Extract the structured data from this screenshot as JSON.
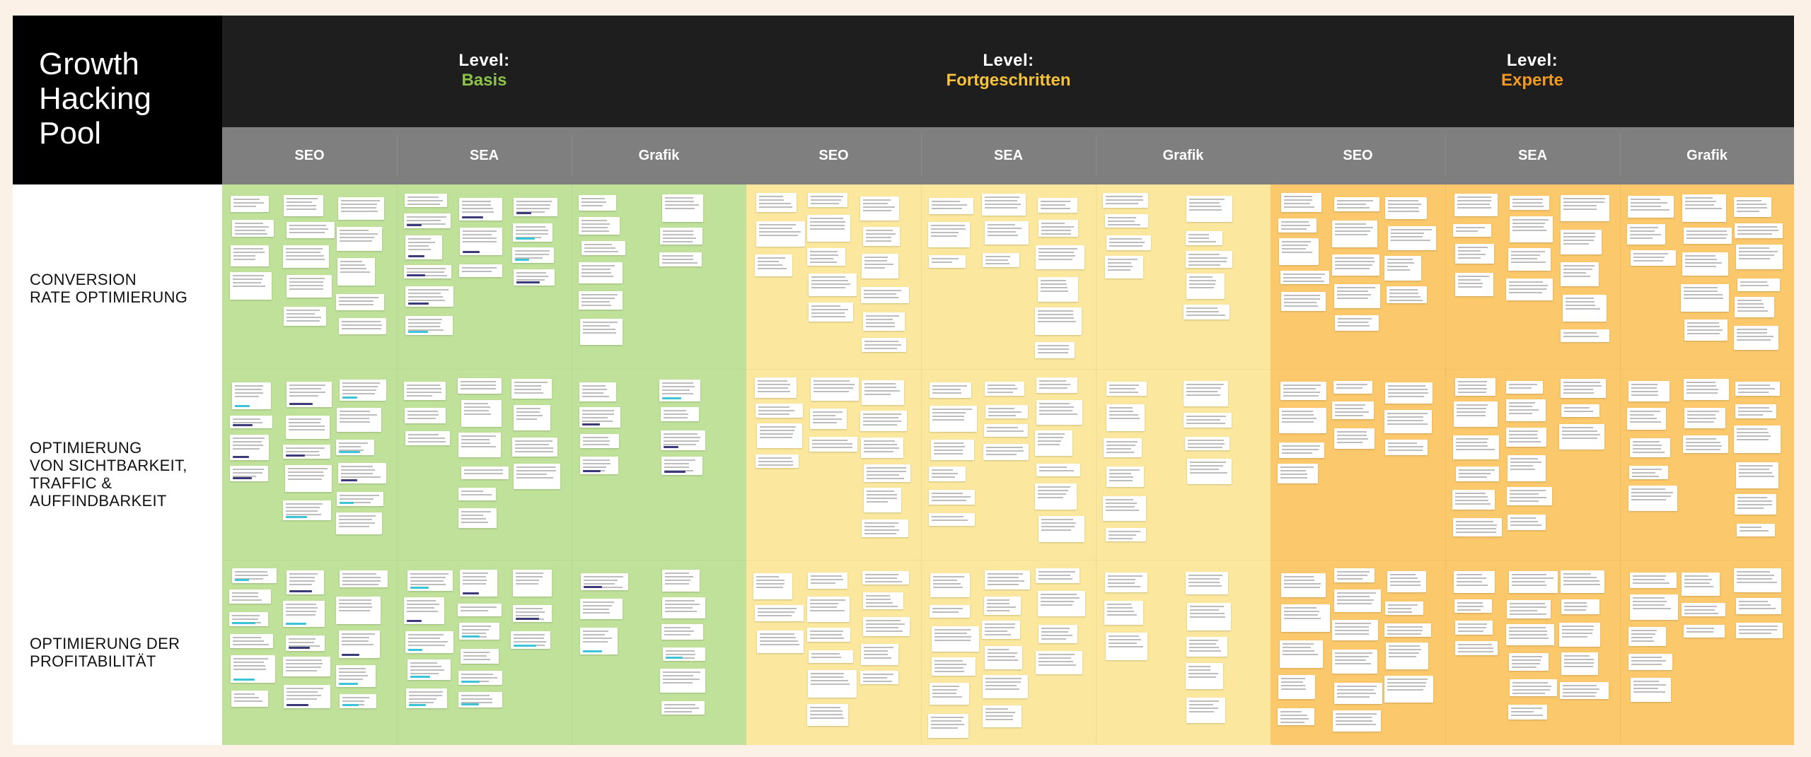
{
  "board": {
    "title_lines": [
      "Growth",
      "Hacking",
      "Pool"
    ]
  },
  "levels": [
    {
      "prefix": "Level:",
      "name": "Basis",
      "name_color": "#8bc34a",
      "bg_color": "#bfe19a"
    },
    {
      "prefix": "Level:",
      "name": "Fortgeschritten",
      "name_color": "#f5c23a",
      "bg_color": "#fbe79d"
    },
    {
      "prefix": "Level:",
      "name": "Experte",
      "name_color": "#f39a1e",
      "bg_color": "#fbc96b"
    }
  ],
  "categories": [
    "SEO",
    "SEA",
    "Grafik",
    "SEO",
    "SEA",
    "Grafik",
    "SEO",
    "SEA",
    "Grafik"
  ],
  "rows": [
    {
      "label_lines": [
        "CONVERSION",
        "RATE OPTIMIERUNG"
      ]
    },
    {
      "label_lines": [
        "OPTIMIERUNG",
        "VON SICHTBARKEIT,",
        "TRAFFIC &",
        "AUFFINDBARKEIT"
      ]
    },
    {
      "label_lines": [
        "OPTIMIERUNG DER",
        "PROFITABILITÄT"
      ]
    }
  ],
  "colors": {
    "header_dark": "#1e1e1e",
    "category_bar": "#7f7f7f",
    "tag_cyan": "#3cc4d6",
    "tag_navy": "#3d3a7a"
  }
}
